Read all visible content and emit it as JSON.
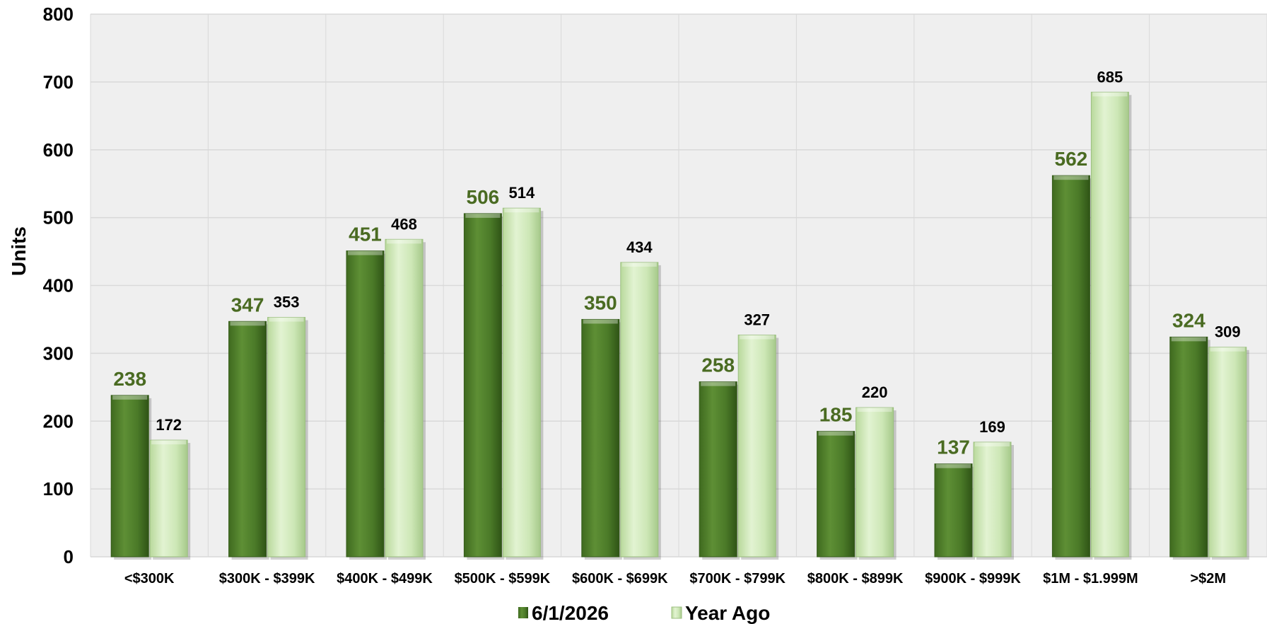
{
  "chart_data": {
    "type": "bar",
    "ylabel": "Units",
    "ylim": [
      0,
      800
    ],
    "yticks": [
      "0",
      "100",
      "200",
      "300",
      "400",
      "500",
      "600",
      "700",
      "800"
    ],
    "grid": true,
    "legend_position": "bottom",
    "categories": [
      "<$300K",
      "$300K - $399K",
      "$400K - $499K",
      "$500K - $599K",
      "$600K - $699K",
      "$700K - $799K",
      "$800K - $899K",
      "$900K - $999K",
      "$1M - $1.999M",
      ">$2M"
    ],
    "series": [
      {
        "name": "6/1/2026",
        "values": [
          238,
          347,
          451,
          506,
          350,
          258,
          185,
          137,
          562,
          324
        ]
      },
      {
        "name": "Year Ago",
        "values": [
          172,
          353,
          468,
          514,
          434,
          327,
          220,
          169,
          685,
          309
        ]
      }
    ],
    "colors": {
      "current": "#4e7d2a",
      "previous": "#cfe8b8",
      "current_label": "#4a6b22",
      "plot_bg": "#efefef",
      "grid": "#d9d9d9"
    }
  }
}
